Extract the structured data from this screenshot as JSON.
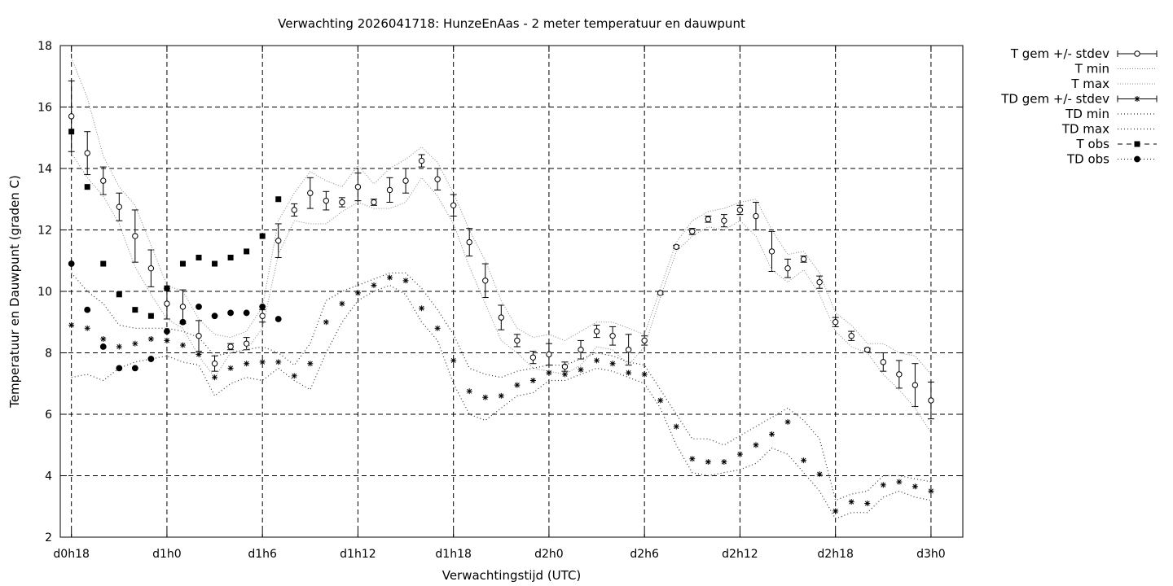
{
  "chart_data": {
    "type": "line",
    "title": "Verwachting 2026041718: HunzeEnAas - 2 meter temperatuur en dauwpunt",
    "xlabel": "Verwachtingstijd (UTC)",
    "ylabel": "Temperatuur en Dauwpunt (graden C)",
    "xlim": [
      -0.7,
      56.0
    ],
    "ylim": [
      2,
      18
    ],
    "grid": true,
    "legend_position": "outside-right",
    "x_ticks": [
      {
        "x": 0,
        "label": "d0h18"
      },
      {
        "x": 6,
        "label": "d1h0"
      },
      {
        "x": 12,
        "label": "d1h6"
      },
      {
        "x": 18,
        "label": "d1h12"
      },
      {
        "x": 24,
        "label": "d1h18"
      },
      {
        "x": 30,
        "label": "d2h0"
      },
      {
        "x": 36,
        "label": "d2h6"
      },
      {
        "x": 42,
        "label": "d2h12"
      },
      {
        "x": 48,
        "label": "d2h18"
      },
      {
        "x": 54,
        "label": "d3h0"
      }
    ],
    "y_ticks": [
      2,
      4,
      6,
      8,
      10,
      12,
      14,
      16,
      18
    ],
    "series": [
      {
        "name": "T gem +/- stdev",
        "style": "errorbar-open-circle",
        "x": [
          0,
          1,
          2,
          3,
          4,
          5,
          6,
          7,
          8,
          9,
          10,
          11,
          12,
          13,
          14,
          15,
          16,
          17,
          18,
          19,
          20,
          21,
          22,
          23,
          24,
          25,
          26,
          27,
          28,
          29,
          30,
          31,
          32,
          33,
          34,
          35,
          36,
          37,
          38,
          39,
          40,
          41,
          42,
          43,
          44,
          45,
          46,
          47,
          48,
          49,
          50,
          51,
          52,
          53,
          54
        ],
        "y": [
          15.7,
          14.5,
          13.6,
          12.75,
          11.8,
          10.75,
          9.6,
          9.5,
          8.55,
          7.65,
          8.2,
          8.3,
          9.2,
          11.65,
          12.65,
          13.2,
          12.95,
          12.9,
          13.4,
          12.9,
          13.3,
          13.6,
          14.25,
          13.65,
          12.8,
          11.6,
          10.35,
          9.15,
          8.4,
          7.85,
          7.95,
          7.55,
          8.1,
          8.7,
          8.55,
          8.1,
          8.4,
          9.95,
          11.45,
          11.95,
          12.35,
          12.3,
          12.65,
          12.45,
          11.3,
          10.75,
          11.05,
          10.3,
          9.0,
          8.55,
          8.1,
          7.7,
          7.3,
          6.95,
          6.45
        ],
        "err": [
          1.15,
          0.7,
          0.45,
          0.45,
          0.85,
          0.6,
          0.5,
          0.55,
          0.5,
          0.25,
          0.1,
          0.2,
          0.2,
          0.55,
          0.2,
          0.5,
          0.3,
          0.15,
          0.45,
          0.1,
          0.4,
          0.4,
          0.2,
          0.35,
          0.35,
          0.45,
          0.55,
          0.4,
          0.2,
          0.2,
          0.35,
          0.15,
          0.3,
          0.2,
          0.3,
          0.5,
          0.15,
          0.05,
          0.05,
          0.1,
          0.1,
          0.2,
          0.15,
          0.45,
          0.65,
          0.3,
          0.1,
          0.2,
          0.15,
          0.15,
          0.05,
          0.3,
          0.45,
          0.7,
          0.6
        ]
      },
      {
        "name": "T min",
        "style": "dotted",
        "x": [
          0,
          1,
          2,
          3,
          4,
          5,
          6,
          7,
          8,
          9,
          10,
          11,
          12,
          13,
          14,
          15,
          16,
          17,
          18,
          19,
          20,
          21,
          22,
          23,
          24,
          25,
          26,
          27,
          28,
          29,
          30,
          31,
          32,
          33,
          34,
          35,
          36,
          37,
          38,
          39,
          40,
          41,
          42,
          43,
          44,
          45,
          46,
          47,
          48,
          49,
          50,
          51,
          52,
          53,
          54
        ],
        "y": [
          14.5,
          13.7,
          13.1,
          12.2,
          10.8,
          9.9,
          9.1,
          8.8,
          7.9,
          7.2,
          8.0,
          8.1,
          8.8,
          11.2,
          12.3,
          12.2,
          12.2,
          12.6,
          12.9,
          12.7,
          12.7,
          12.9,
          13.7,
          13.1,
          12.2,
          10.8,
          9.6,
          8.4,
          8.0,
          7.5,
          7.4,
          7.3,
          7.6,
          8.2,
          8.1,
          7.6,
          8.2,
          9.8,
          11.3,
          11.8,
          12.1,
          12.0,
          12.3,
          11.8,
          10.7,
          10.3,
          10.7,
          9.9,
          8.7,
          8.2,
          8.0,
          7.3,
          6.8,
          6.2,
          5.4
        ]
      },
      {
        "name": "T max",
        "style": "dotted",
        "x": [
          0,
          1,
          2,
          3,
          4,
          5,
          6,
          7,
          8,
          9,
          10,
          11,
          12,
          13,
          14,
          15,
          16,
          17,
          18,
          19,
          20,
          21,
          22,
          23,
          24,
          25,
          26,
          27,
          28,
          29,
          30,
          31,
          32,
          33,
          34,
          35,
          36,
          37,
          38,
          39,
          40,
          41,
          42,
          43,
          44,
          45,
          46,
          47,
          48,
          49,
          50,
          51,
          52,
          53,
          54
        ],
        "y": [
          17.6,
          16.3,
          14.4,
          13.4,
          12.8,
          11.5,
          10.2,
          10.0,
          9.1,
          8.6,
          8.5,
          8.7,
          9.5,
          12.3,
          13.2,
          13.9,
          13.6,
          13.4,
          14.1,
          13.5,
          14.0,
          14.3,
          14.7,
          14.2,
          13.2,
          12.0,
          11.0,
          9.7,
          8.8,
          8.5,
          8.6,
          8.4,
          8.7,
          9.0,
          9.0,
          8.8,
          8.6,
          10.1,
          11.6,
          12.3,
          12.6,
          12.7,
          12.9,
          13.0,
          12.0,
          11.2,
          11.3,
          10.6,
          9.3,
          8.9,
          8.3,
          8.3,
          8.0,
          7.9,
          7.3
        ]
      },
      {
        "name": "TD gem +/- stdev",
        "style": "errorbar-asterisk",
        "x": [
          0,
          1,
          2,
          3,
          4,
          5,
          6,
          7,
          8,
          9,
          10,
          11,
          12,
          13,
          14,
          15,
          16,
          17,
          18,
          19,
          20,
          21,
          22,
          23,
          24,
          25,
          26,
          27,
          28,
          29,
          30,
          31,
          32,
          33,
          34,
          35,
          36,
          37,
          38,
          39,
          40,
          41,
          42,
          43,
          44,
          45,
          46,
          47,
          48,
          49,
          50,
          51,
          52,
          53,
          54
        ],
        "y": [
          8.9,
          8.8,
          8.45,
          8.2,
          8.3,
          8.45,
          8.4,
          8.25,
          7.95,
          7.2,
          7.5,
          7.65,
          7.7,
          7.7,
          7.25,
          7.65,
          9.0,
          9.6,
          9.95,
          10.2,
          10.45,
          10.35,
          9.45,
          8.8,
          7.75,
          6.75,
          6.55,
          6.6,
          6.95,
          7.1,
          7.35,
          7.3,
          7.45,
          7.75,
          7.65,
          7.35,
          7.3,
          6.45,
          5.6,
          4.55,
          4.45,
          4.45,
          4.7,
          5.0,
          5.35,
          5.75,
          4.5,
          4.05,
          2.85,
          3.15,
          3.1,
          3.7,
          3.8,
          3.65,
          3.5
        ]
      },
      {
        "name": "TD min",
        "style": "dotted",
        "x": [
          0,
          1,
          2,
          3,
          4,
          5,
          6,
          7,
          8,
          9,
          10,
          11,
          12,
          13,
          14,
          15,
          16,
          17,
          18,
          19,
          20,
          21,
          22,
          23,
          24,
          25,
          26,
          27,
          28,
          29,
          30,
          31,
          32,
          33,
          34,
          35,
          36,
          37,
          38,
          39,
          40,
          41,
          42,
          43,
          44,
          45,
          46,
          47,
          48,
          49,
          50,
          51,
          52,
          53,
          54
        ],
        "y": [
          7.2,
          7.3,
          7.1,
          7.5,
          7.7,
          7.8,
          7.9,
          7.7,
          7.6,
          6.6,
          7.0,
          7.2,
          7.1,
          7.5,
          7.1,
          6.8,
          8.0,
          9.0,
          9.7,
          10.0,
          10.2,
          9.9,
          9.0,
          8.4,
          7.0,
          6.0,
          5.8,
          6.2,
          6.6,
          6.7,
          7.1,
          7.1,
          7.3,
          7.5,
          7.4,
          7.2,
          7.0,
          6.2,
          5.0,
          4.1,
          4.0,
          4.1,
          4.2,
          4.4,
          4.9,
          4.7,
          4.1,
          3.5,
          2.6,
          2.8,
          2.8,
          3.3,
          3.5,
          3.3,
          3.2
        ]
      },
      {
        "name": "TD max",
        "style": "dotted",
        "x": [
          0,
          1,
          2,
          3,
          4,
          5,
          6,
          7,
          8,
          9,
          10,
          11,
          12,
          13,
          14,
          15,
          16,
          17,
          18,
          19,
          20,
          21,
          22,
          23,
          24,
          25,
          26,
          27,
          28,
          29,
          30,
          31,
          32,
          33,
          34,
          35,
          36,
          37,
          38,
          39,
          40,
          41,
          42,
          43,
          44,
          45,
          46,
          47,
          48,
          49,
          50,
          51,
          52,
          53,
          54
        ],
        "y": [
          10.6,
          10.0,
          9.6,
          8.9,
          8.8,
          8.8,
          8.8,
          8.7,
          8.5,
          7.9,
          8.0,
          8.1,
          8.2,
          8.0,
          7.6,
          8.3,
          9.7,
          10.0,
          10.2,
          10.4,
          10.6,
          10.6,
          10.1,
          9.4,
          8.6,
          7.5,
          7.3,
          7.2,
          7.4,
          7.5,
          7.6,
          7.6,
          7.8,
          8.0,
          7.9,
          7.7,
          7.6,
          6.8,
          6.0,
          5.2,
          5.2,
          5.0,
          5.3,
          5.6,
          5.9,
          6.2,
          5.8,
          5.2,
          3.2,
          3.4,
          3.5,
          4.0,
          4.0,
          3.9,
          3.8
        ]
      },
      {
        "name": "T obs",
        "style": "filled-square",
        "x": [
          0,
          1,
          2,
          3,
          4,
          5,
          6,
          7,
          8,
          9,
          10,
          11,
          12,
          13
        ],
        "y": [
          15.2,
          13.4,
          10.9,
          9.9,
          9.4,
          9.2,
          10.1,
          10.9,
          11.1,
          10.9,
          11.1,
          11.3,
          11.8,
          13.0
        ]
      },
      {
        "name": "TD obs",
        "style": "filled-circle",
        "x": [
          0,
          1,
          2,
          3,
          4,
          5,
          6,
          7,
          8,
          9,
          10,
          11,
          12,
          13
        ],
        "y": [
          10.9,
          9.4,
          8.2,
          7.5,
          7.5,
          7.8,
          8.7,
          9.0,
          9.5,
          9.2,
          9.3,
          9.3,
          9.5,
          9.1
        ]
      }
    ]
  }
}
